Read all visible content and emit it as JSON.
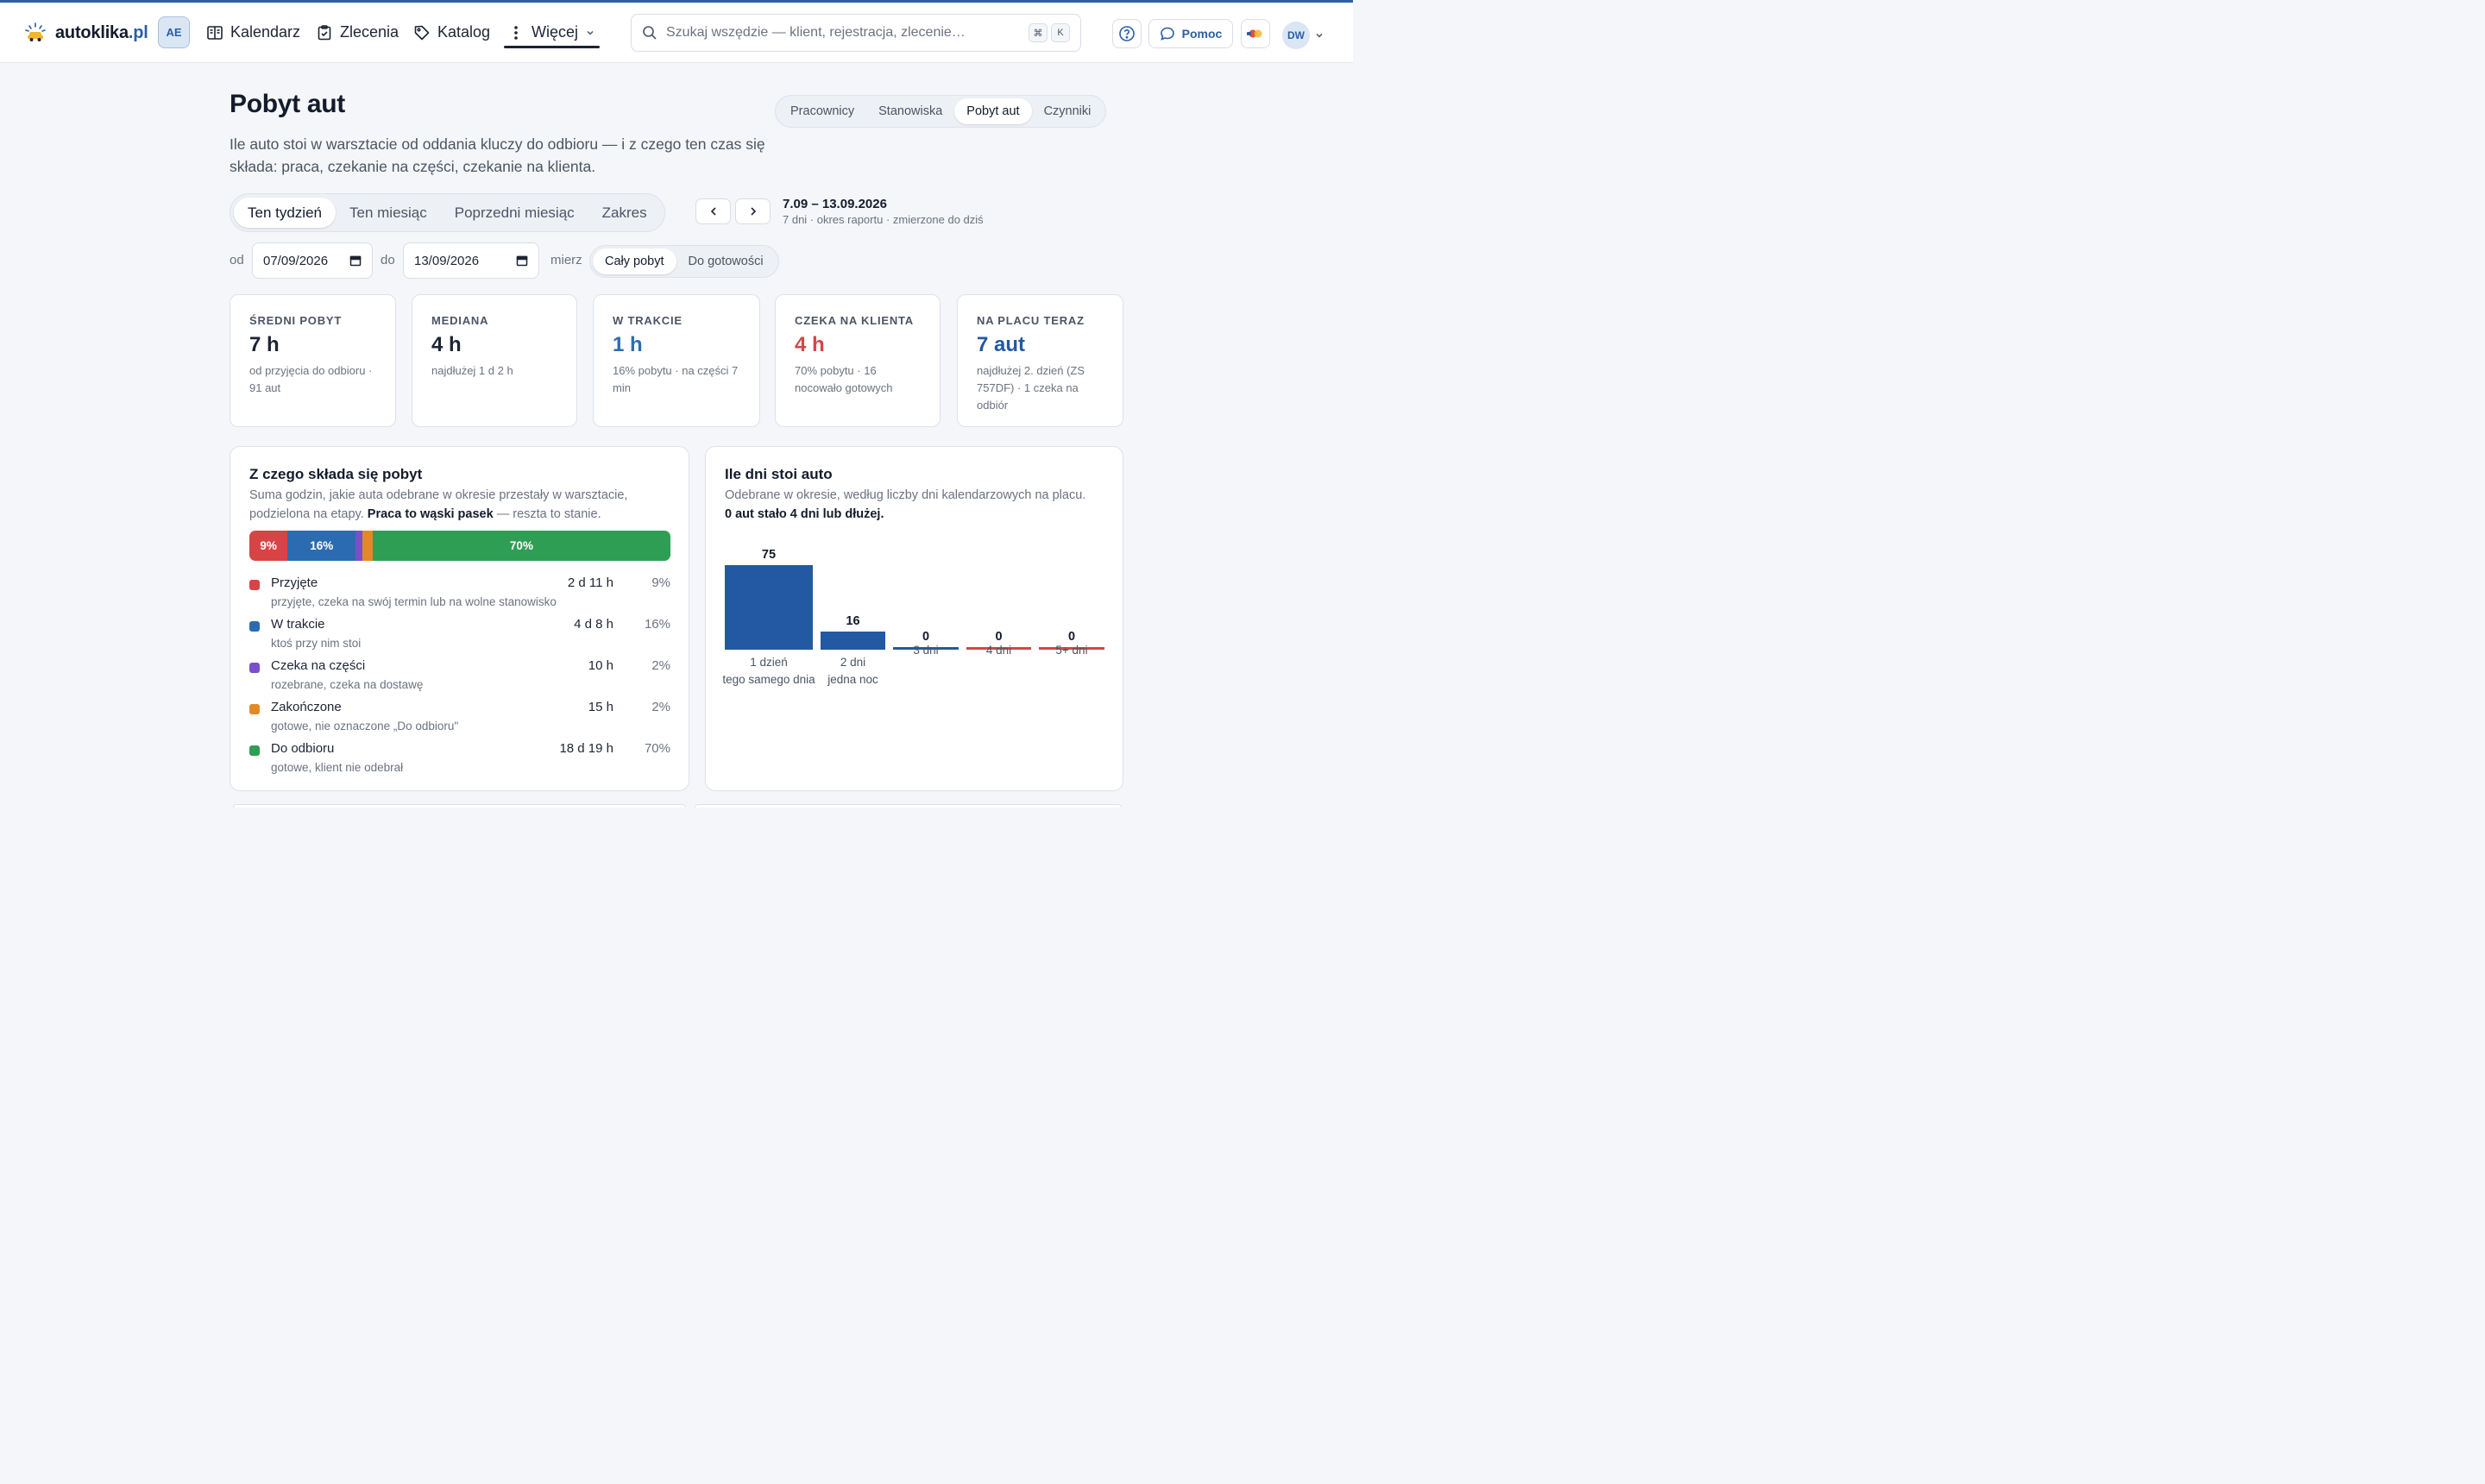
{
  "header": {
    "logo_name": "autoklika",
    "logo_tld": ".pl",
    "workspace_badge": "AE",
    "nav": {
      "calendar": "Kalendarz",
      "orders": "Zlecenia",
      "catalog": "Katalog",
      "more": "Więcej"
    },
    "search": {
      "placeholder": "Szukaj wszędzie — klient, rejestracja, zlecenie…",
      "shortcut_mod": "⌘",
      "shortcut_key": "K"
    },
    "help_label": "Pomoc",
    "user_initials": "DW"
  },
  "page": {
    "title": "Pobyt aut",
    "description": "Ile auto stoi w warsztacie od oddania kluczy do odbioru — i z czego ten czas się składa: praca, czekanie na części, czekanie na klienta.",
    "report_tabs": [
      "Pracownicy",
      "Stanowiska",
      "Pobyt aut",
      "Czynniki"
    ],
    "report_tab_active": "Pobyt aut"
  },
  "period": {
    "options": [
      "Ten tydzień",
      "Ten miesiąc",
      "Poprzedni miesiąc",
      "Zakres"
    ],
    "active": "Ten tydzień",
    "range_label": "7.09 – 13.09.2026",
    "range_sub": "7 dni · okres raportu · zmierzone do dziś"
  },
  "filters": {
    "from_label": "od",
    "from_value": "07/09/2026",
    "to_label": "do",
    "to_value": "13/09/2026",
    "measure_label": "mierz",
    "measure_options": [
      "Cały pobyt",
      "Do gotowości"
    ],
    "measure_active": "Cały pobyt"
  },
  "kpis": [
    {
      "label": "ŚREDNI POBYT",
      "value": "7 h",
      "note": "od przyjęcia do odbioru · 91 aut",
      "color": "#1d2433"
    },
    {
      "label": "MEDIANA",
      "value": "4 h",
      "note": "najdłużej 1 d 2 h",
      "color": "#1d2433"
    },
    {
      "label": "W TRAKCIE",
      "value": "1 h",
      "note": "16% pobytu · na części 7 min",
      "color": "#2b6cb0"
    },
    {
      "label": "CZEKA NA KLIENTA",
      "value": "4 h",
      "note": "70% pobytu · 16 nocowało gotowych",
      "color": "#d64545"
    },
    {
      "label": "NA PLACU TERAZ",
      "value": "7 aut",
      "note": "najdłużej 2. dzień (ZS 757DF) · 1 czeka na odbiór",
      "color": "#2358a3"
    }
  ],
  "breakdown": {
    "title": "Z czego składa się pobyt",
    "desc_plain": "Suma godzin, jakie auta odebrane w okresie przestały w warsztacie, podzielona na etapy. ",
    "desc_bold": "Praca to wąski pasek",
    "desc_tail": " — reszta to stanie.",
    "stages": [
      {
        "name": "Przyjęte",
        "sub": "przyjęte, czeka na swój termin lub na wolne stanowisko",
        "duration": "2 d 11 h",
        "pct_label": "9%",
        "share": 9,
        "color": "#d64545"
      },
      {
        "name": "W trakcie",
        "sub": "ktoś przy nim stoi",
        "duration": "4 d 8 h",
        "pct_label": "16%",
        "share": 16,
        "color": "#2b6cb0"
      },
      {
        "name": "Czeka na części",
        "sub": "rozebrane, czeka na dostawę",
        "duration": "10 h",
        "pct_label": "2%",
        "share": 1.6,
        "color": "#7b4fc9"
      },
      {
        "name": "Zakończone",
        "sub": "gotowe, nie oznaczone „Do odbioru\"",
        "duration": "15 h",
        "pct_label": "2%",
        "share": 2.4,
        "color": "#e08a26"
      },
      {
        "name": "Do odbioru",
        "sub": "gotowe, klient nie odebrał",
        "duration": "18 d 19 h",
        "pct_label": "70%",
        "share": 70,
        "color": "#2f9e55"
      }
    ]
  },
  "days": {
    "title": "Ile dni stoi auto",
    "desc": "Odebrane w okresie, według liczby dni kalendarzowych na placu.",
    "desc_bold": "0 aut stało 4 dni lub dłużej."
  },
  "chart_data": {
    "type": "bar",
    "categories": [
      "1 dzień",
      "2 dni",
      "3 dni",
      "4 dni",
      "5+ dni"
    ],
    "category_subs": [
      "tego samego dnia",
      "jedna noc",
      "",
      "",
      ""
    ],
    "values": [
      75,
      16,
      0,
      0,
      0
    ],
    "colors": [
      "#2358a3",
      "#2358a3",
      "#2358a3",
      "#d64545",
      "#d64545"
    ]
  }
}
